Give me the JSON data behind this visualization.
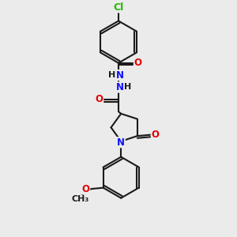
{
  "bg_color": "#ebebeb",
  "bond_color": "#1a1a1a",
  "bond_width": 1.5,
  "atom_colors": {
    "C": "#1a1a1a",
    "N": "#1010ff",
    "O": "#e00000",
    "Cl": "#22bb00",
    "H": "#1a1a1a"
  },
  "font_size": 8.5,
  "figsize": [
    3.0,
    3.0
  ],
  "dpi": 100
}
